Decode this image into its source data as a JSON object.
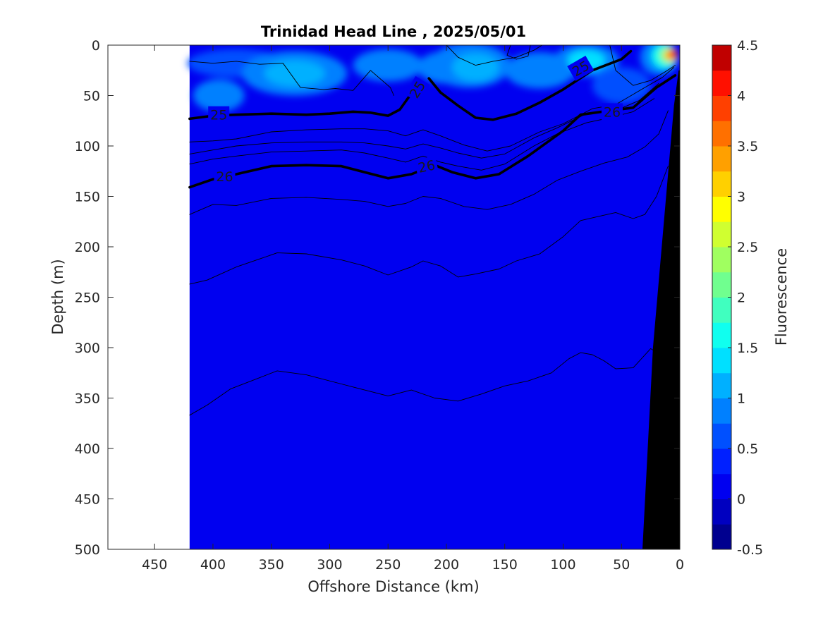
{
  "chart_data": {
    "type": "heatmap",
    "title": "Trinidad Head Line , 2025/05/01",
    "xlabel": "Offshore Distance (km)",
    "ylabel": "Depth (m)",
    "xlim": [
      490,
      0
    ],
    "ylim": [
      500,
      0
    ],
    "x_ticks": [
      "450",
      "400",
      "350",
      "300",
      "250",
      "200",
      "150",
      "100",
      "50",
      "0"
    ],
    "x_tick_values": [
      450,
      400,
      350,
      300,
      250,
      200,
      150,
      100,
      50,
      0
    ],
    "y_ticks": [
      "0",
      "50",
      "100",
      "150",
      "200",
      "250",
      "300",
      "350",
      "400",
      "450",
      "500"
    ],
    "y_tick_values": [
      0,
      50,
      100,
      150,
      200,
      250,
      300,
      350,
      400,
      450,
      500
    ],
    "colorbar": {
      "label": "Fluorescence",
      "range": [
        -0.5,
        4.5
      ],
      "ticks": [
        "4.5",
        "4",
        "3.5",
        "3",
        "2.5",
        "2",
        "1.5",
        "1",
        "0.5",
        "0",
        "-0.5"
      ],
      "tick_values": [
        4.5,
        4,
        3.5,
        3,
        2.5,
        2,
        1.5,
        1,
        0.5,
        0,
        -0.5
      ],
      "levels": [
        {
          "from": -0.5,
          "to": -0.25,
          "color": "#00008f"
        },
        {
          "from": -0.25,
          "to": 0,
          "color": "#0000c0"
        },
        {
          "from": 0,
          "to": 0.25,
          "color": "#0000f0"
        },
        {
          "from": 0.25,
          "to": 0.5,
          "color": "#0020ff"
        },
        {
          "from": 0.5,
          "to": 0.75,
          "color": "#0050ff"
        },
        {
          "from": 0.75,
          "to": 1,
          "color": "#0080ff"
        },
        {
          "from": 1,
          "to": 1.25,
          "color": "#00b0ff"
        },
        {
          "from": 1.25,
          "to": 1.5,
          "color": "#00e0ff"
        },
        {
          "from": 1.5,
          "to": 1.75,
          "color": "#10ffef"
        },
        {
          "from": 1.75,
          "to": 2,
          "color": "#40ffbf"
        },
        {
          "from": 2,
          "to": 2.25,
          "color": "#70ff8f"
        },
        {
          "from": 2.25,
          "to": 2.5,
          "color": "#a0ff60"
        },
        {
          "from": 2.5,
          "to": 2.75,
          "color": "#d0ff30"
        },
        {
          "from": 2.75,
          "to": 3,
          "color": "#ffff00"
        },
        {
          "from": 3,
          "to": 3.25,
          "color": "#ffd000"
        },
        {
          "from": 3.25,
          "to": 3.5,
          "color": "#ffa000"
        },
        {
          "from": 3.5,
          "to": 3.75,
          "color": "#ff7000"
        },
        {
          "from": 3.75,
          "to": 4,
          "color": "#ff4000"
        },
        {
          "from": 4,
          "to": 4.25,
          "color": "#ff1000"
        },
        {
          "from": 4.25,
          "to": 4.5,
          "color": "#c00000"
        }
      ]
    },
    "data_extent_km": [
      420,
      0
    ],
    "background_color": "#0000f0",
    "fluorescence_patches": [
      {
        "x": 380,
        "y": 18,
        "rx": 42,
        "ry": 14,
        "value": 0.5
      },
      {
        "x": 330,
        "y": 28,
        "rx": 45,
        "ry": 22,
        "value": 0.75
      },
      {
        "x": 330,
        "y": 28,
        "rx": 26,
        "ry": 13,
        "value": 1.0
      },
      {
        "x": 250,
        "y": 20,
        "rx": 30,
        "ry": 16,
        "value": 0.75
      },
      {
        "x": 200,
        "y": 22,
        "rx": 25,
        "ry": 16,
        "value": 0.75
      },
      {
        "x": 180,
        "y": 20,
        "rx": 35,
        "ry": 22,
        "value": 0.75
      },
      {
        "x": 175,
        "y": 22,
        "rx": 20,
        "ry": 14,
        "value": 1.0
      },
      {
        "x": 120,
        "y": 25,
        "rx": 30,
        "ry": 18,
        "value": 0.75
      },
      {
        "x": 80,
        "y": 15,
        "rx": 28,
        "ry": 16,
        "value": 0.75
      },
      {
        "x": 80,
        "y": 15,
        "rx": 16,
        "ry": 10,
        "value": 1.25
      },
      {
        "x": 395,
        "y": 50,
        "rx": 22,
        "ry": 16,
        "value": 0.75
      },
      {
        "x": 50,
        "y": 40,
        "rx": 25,
        "ry": 18,
        "value": 0.5
      },
      {
        "x": 18,
        "y": 12,
        "rx": 16,
        "ry": 18,
        "value": 0.75
      },
      {
        "x": 13,
        "y": 11,
        "rx": 11,
        "ry": 12,
        "value": 1.5
      },
      {
        "x": 10,
        "y": 10,
        "rx": 8,
        "ry": 8,
        "value": 2.0
      },
      {
        "x": 8,
        "y": 10,
        "rx": 6,
        "ry": 6,
        "value": 3.0
      },
      {
        "x": 6,
        "y": 9,
        "rx": 4,
        "ry": 5,
        "value": 4.0
      }
    ],
    "density_contours": [
      {
        "level": 25,
        "bold": true,
        "points": [
          [
            420,
            73
          ],
          [
            400,
            70
          ],
          [
            380,
            69
          ],
          [
            350,
            68
          ],
          [
            320,
            69
          ],
          [
            300,
            68
          ],
          [
            280,
            66
          ],
          [
            265,
            67
          ],
          [
            250,
            70
          ],
          [
            240,
            64
          ],
          [
            230,
            48
          ]
        ]
      },
      {
        "level": 25,
        "bold": true,
        "points": [
          [
            215,
            33
          ],
          [
            205,
            47
          ],
          [
            190,
            60
          ],
          [
            175,
            72
          ],
          [
            160,
            74
          ],
          [
            140,
            68
          ],
          [
            120,
            57
          ],
          [
            100,
            44
          ],
          [
            75,
            25
          ],
          [
            50,
            14
          ],
          [
            42,
            6
          ]
        ]
      },
      {
        "level": 26,
        "bold": true,
        "points": [
          [
            420,
            141
          ],
          [
            400,
            133
          ],
          [
            380,
            128
          ],
          [
            350,
            120
          ],
          [
            320,
            119
          ],
          [
            290,
            120
          ],
          [
            270,
            126
          ],
          [
            250,
            132
          ],
          [
            230,
            128
          ],
          [
            210,
            119
          ],
          [
            195,
            126
          ],
          [
            175,
            132
          ],
          [
            155,
            128
          ],
          [
            130,
            110
          ],
          [
            100,
            85
          ],
          [
            85,
            69
          ],
          [
            60,
            65
          ],
          [
            40,
            62
          ],
          [
            20,
            42
          ],
          [
            4,
            30
          ]
        ]
      },
      {
        "level": null,
        "bold": false,
        "points": [
          [
            420,
            16
          ],
          [
            400,
            18
          ],
          [
            380,
            16
          ],
          [
            360,
            19
          ],
          [
            340,
            18
          ],
          [
            325,
            42
          ],
          [
            305,
            44
          ],
          [
            295,
            43
          ],
          [
            280,
            45
          ],
          [
            265,
            25
          ],
          [
            248,
            42
          ],
          [
            245,
            50
          ]
        ]
      },
      {
        "level": null,
        "bold": false,
        "points": [
          [
            420,
            96
          ],
          [
            400,
            95
          ],
          [
            380,
            93
          ],
          [
            350,
            86
          ],
          [
            320,
            84
          ],
          [
            290,
            83
          ],
          [
            270,
            83
          ],
          [
            250,
            85
          ],
          [
            235,
            90
          ],
          [
            220,
            84
          ],
          [
            205,
            90
          ],
          [
            185,
            99
          ],
          [
            165,
            105
          ],
          [
            145,
            100
          ],
          [
            120,
            86
          ],
          [
            100,
            78
          ],
          [
            75,
            63
          ],
          [
            55,
            59
          ],
          [
            30,
            42
          ],
          [
            15,
            32
          ],
          [
            5,
            22
          ]
        ]
      },
      {
        "level": null,
        "bold": false,
        "points": [
          [
            420,
            108
          ],
          [
            400,
            104
          ],
          [
            380,
            100
          ],
          [
            350,
            97
          ],
          [
            320,
            96
          ],
          [
            290,
            96
          ],
          [
            270,
            97
          ],
          [
            250,
            100
          ],
          [
            235,
            103
          ],
          [
            220,
            98
          ],
          [
            205,
            102
          ],
          [
            190,
            107
          ],
          [
            170,
            112
          ],
          [
            150,
            108
          ],
          [
            125,
            92
          ],
          [
            105,
            82
          ],
          [
            80,
            68
          ],
          [
            55,
            65
          ],
          [
            35,
            55
          ],
          [
            18,
            38
          ]
        ]
      },
      {
        "level": null,
        "bold": false,
        "points": [
          [
            420,
            118
          ],
          [
            400,
            113
          ],
          [
            380,
            110
          ],
          [
            350,
            106
          ],
          [
            320,
            105
          ],
          [
            290,
            104
          ],
          [
            270,
            107
          ],
          [
            250,
            112
          ],
          [
            235,
            116
          ],
          [
            220,
            110
          ],
          [
            205,
            116
          ],
          [
            190,
            120
          ],
          [
            170,
            124
          ],
          [
            150,
            118
          ],
          [
            125,
            100
          ],
          [
            105,
            88
          ],
          [
            80,
            77
          ],
          [
            60,
            72
          ],
          [
            40,
            66
          ],
          [
            22,
            53
          ]
        ]
      },
      {
        "level": null,
        "bold": false,
        "points": [
          [
            420,
            168
          ],
          [
            400,
            158
          ],
          [
            380,
            159
          ],
          [
            350,
            152
          ],
          [
            320,
            151
          ],
          [
            290,
            153
          ],
          [
            270,
            155
          ],
          [
            250,
            160
          ],
          [
            235,
            157
          ],
          [
            220,
            150
          ],
          [
            205,
            152
          ],
          [
            185,
            160
          ],
          [
            165,
            163
          ],
          [
            145,
            158
          ],
          [
            125,
            148
          ],
          [
            105,
            134
          ],
          [
            85,
            125
          ],
          [
            65,
            117
          ],
          [
            45,
            111
          ],
          [
            30,
            101
          ],
          [
            18,
            88
          ],
          [
            10,
            65
          ]
        ]
      },
      {
        "level": null,
        "bold": false,
        "points": [
          [
            420,
            237
          ],
          [
            405,
            233
          ],
          [
            380,
            220
          ],
          [
            360,
            212
          ],
          [
            345,
            206
          ],
          [
            320,
            207
          ],
          [
            290,
            213
          ],
          [
            270,
            219
          ],
          [
            250,
            228
          ],
          [
            230,
            220
          ],
          [
            220,
            214
          ],
          [
            205,
            219
          ],
          [
            190,
            230
          ],
          [
            175,
            227
          ],
          [
            155,
            222
          ],
          [
            140,
            214
          ],
          [
            120,
            207
          ],
          [
            100,
            190
          ],
          [
            85,
            174
          ],
          [
            70,
            170
          ],
          [
            55,
            166
          ],
          [
            40,
            172
          ],
          [
            30,
            168
          ],
          [
            20,
            150
          ],
          [
            10,
            120
          ]
        ]
      },
      {
        "level": null,
        "bold": false,
        "points": [
          [
            420,
            367
          ],
          [
            405,
            357
          ],
          [
            385,
            341
          ],
          [
            365,
            332
          ],
          [
            345,
            323
          ],
          [
            320,
            327
          ],
          [
            290,
            336
          ],
          [
            270,
            342
          ],
          [
            250,
            348
          ],
          [
            230,
            342
          ],
          [
            210,
            350
          ],
          [
            190,
            353
          ],
          [
            170,
            346
          ],
          [
            150,
            338
          ],
          [
            130,
            333
          ],
          [
            110,
            325
          ],
          [
            95,
            311
          ],
          [
            85,
            305
          ],
          [
            75,
            307
          ],
          [
            65,
            313
          ],
          [
            55,
            321
          ],
          [
            40,
            320
          ],
          [
            25,
            301
          ],
          [
            15,
            308
          ]
        ]
      },
      {
        "level": null,
        "bold": false,
        "points": [
          [
            200,
            0
          ],
          [
            190,
            12
          ],
          [
            175,
            20
          ],
          [
            160,
            16
          ],
          [
            140,
            12
          ],
          [
            125,
            5
          ],
          [
            118,
            0
          ]
        ]
      },
      {
        "level": null,
        "bold": false,
        "points": [
          [
            145,
            0
          ],
          [
            148,
            10
          ],
          [
            140,
            14
          ],
          [
            130,
            11
          ],
          [
            128,
            0
          ]
        ]
      },
      {
        "level": null,
        "bold": false,
        "points": [
          [
            60,
            0
          ],
          [
            55,
            25
          ],
          [
            40,
            40
          ],
          [
            25,
            35
          ],
          [
            12,
            26
          ],
          [
            4,
            20
          ]
        ]
      }
    ],
    "contour_labels": [
      {
        "text": "25",
        "x": 395,
        "y": 69,
        "angle": 0
      },
      {
        "text": "25",
        "x": 225,
        "y": 44,
        "angle": -58
      },
      {
        "text": "25",
        "x": 85,
        "y": 23,
        "angle": -30
      },
      {
        "text": "26",
        "x": 390,
        "y": 130,
        "angle": 0
      },
      {
        "text": "26",
        "x": 217,
        "y": 120,
        "angle": -12
      },
      {
        "text": "26",
        "x": 58,
        "y": 66,
        "angle": 0
      }
    ],
    "bottom_polygon": [
      [
        32,
        500
      ],
      [
        23,
        300
      ],
      [
        5,
        60
      ],
      [
        1,
        25
      ],
      [
        0,
        25
      ],
      [
        0,
        500
      ]
    ]
  }
}
